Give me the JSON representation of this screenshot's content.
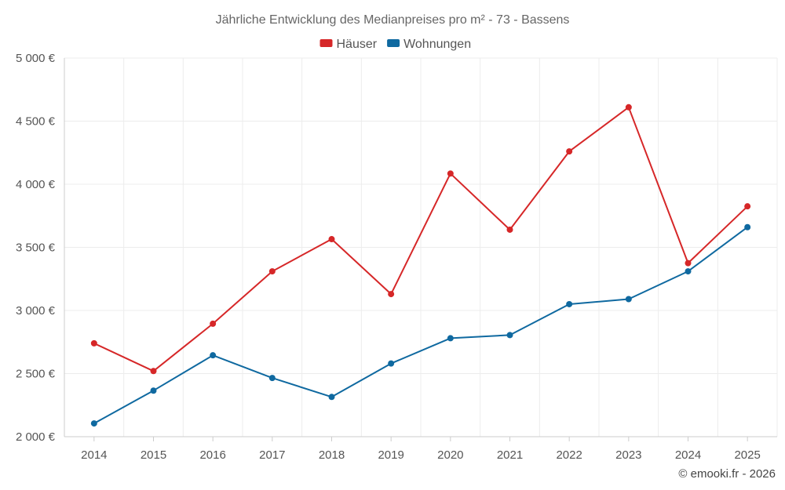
{
  "chart_data": {
    "type": "line",
    "title": "Jährliche Entwicklung des Medianpreises pro m² - 73 - Bassens",
    "xlabel": "",
    "ylabel": "",
    "categories": [
      "2014",
      "2015",
      "2016",
      "2017",
      "2018",
      "2019",
      "2020",
      "2021",
      "2022",
      "2023",
      "2024",
      "2025"
    ],
    "ylim": [
      2000,
      5000
    ],
    "yticks": [
      2000,
      2500,
      3000,
      3500,
      4000,
      4500,
      5000
    ],
    "ytick_labels": [
      "2 000 €",
      "2 500 €",
      "3 000 €",
      "3 500 €",
      "4 000 €",
      "4 500 €",
      "5 000 €"
    ],
    "grid": true,
    "legend_position": "top-center",
    "series": [
      {
        "name": "Häuser",
        "color": "#d62728",
        "values": [
          2740,
          2520,
          2895,
          3310,
          3565,
          3130,
          4085,
          3640,
          4260,
          4610,
          3375,
          3825
        ]
      },
      {
        "name": "Wohnungen",
        "color": "#0f69a0",
        "values": [
          2105,
          2365,
          2645,
          2465,
          2315,
          2580,
          2780,
          2805,
          3050,
          3090,
          3310,
          3660
        ]
      }
    ]
  },
  "footer": {
    "credit": "© emooki.fr - 2026"
  }
}
